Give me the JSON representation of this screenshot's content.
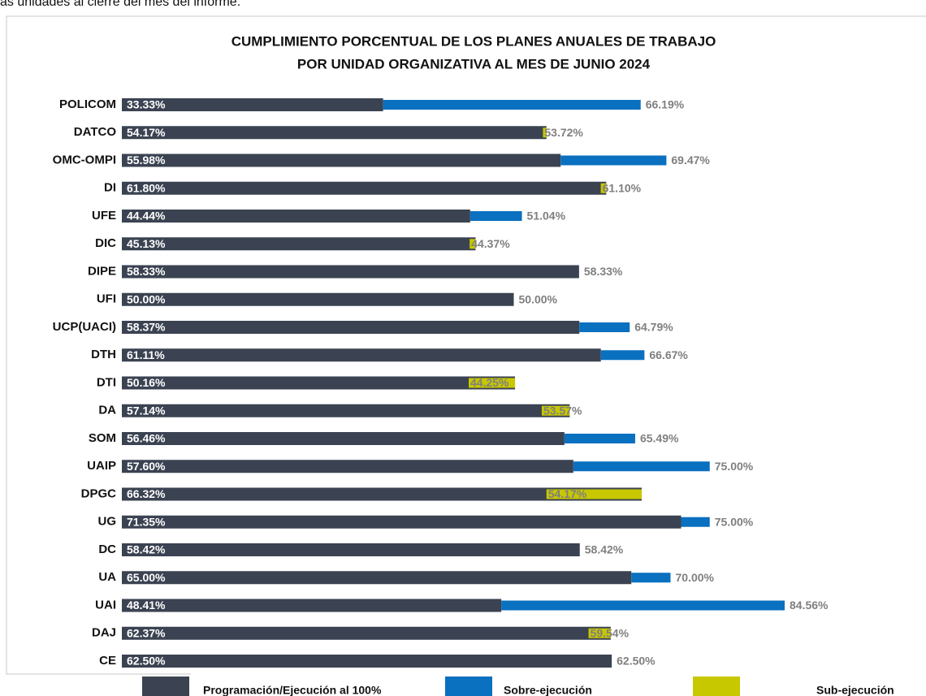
{
  "header_text": "as unidades al cierre del mes del informe.",
  "chart_data": {
    "type": "overlay-bar",
    "title_lines": [
      "CUMPLIMIENTO PORCENTUAL DE LOS PLANES ANUALES DE TRABAJO",
      "POR UNIDAD ORGANIZATIVA AL MES DE JUNIO 2024"
    ],
    "categories": [
      "POLICOM",
      "DATCO",
      "OMC-OMPI",
      "DI",
      "UFE",
      "DIC",
      "DIPE",
      "UFI",
      "UCP(UACI)",
      "DTH",
      "DTI",
      "DA",
      "SOM",
      "UAIP",
      "DPGC",
      "UG",
      "DC",
      "UA",
      "UAI",
      "DAJ",
      "CE"
    ],
    "series": [
      {
        "name": "Programación/Ejecución al 100%",
        "color": "#3b4352",
        "values": [
          33.33,
          54.17,
          55.98,
          61.8,
          44.44,
          45.13,
          58.33,
          50,
          58.37,
          61.11,
          50.16,
          57.14,
          56.46,
          57.6,
          66.32,
          71.35,
          58.42,
          65,
          48.41,
          62.37,
          62.5
        ],
        "value_labels": [
          "33.33%",
          "54.17%",
          "55.98%",
          "61.80%",
          "44.44%",
          "45.13%",
          "58.33%",
          "50.00%",
          "58.37%",
          "61.11%",
          "50.16%",
          "57.14%",
          "56.46%",
          "57.60%",
          "66.32%",
          "71.35%",
          "58.42%",
          "65.00%",
          "48.41%",
          "62.37%",
          "62.50%"
        ]
      }
    ],
    "execution": {
      "over_name": "Sobre-ejecución",
      "over_color": "#0a70c0",
      "under_name": "Sub-ejecución",
      "under_color": "#c8c800",
      "values": [
        66.19,
        53.72,
        69.47,
        61.1,
        51.04,
        44.37,
        58.33,
        50,
        64.79,
        66.67,
        44.25,
        53.57,
        65.49,
        75,
        54.17,
        75,
        58.42,
        70,
        84.56,
        59.54,
        62.5
      ],
      "value_labels": [
        "66.19%",
        "53.72%",
        "69.47%",
        "61.10%",
        "51.04%",
        "44.37%",
        "58.33%",
        "50.00%",
        "64.79%",
        "66.67%",
        "44.25%",
        "53.57%",
        "65.49%",
        "75.00%",
        "54.17%",
        "75.00%",
        "58.42%",
        "70.00%",
        "84.56%",
        "59.54%",
        "62.50%"
      ]
    }
  }
}
